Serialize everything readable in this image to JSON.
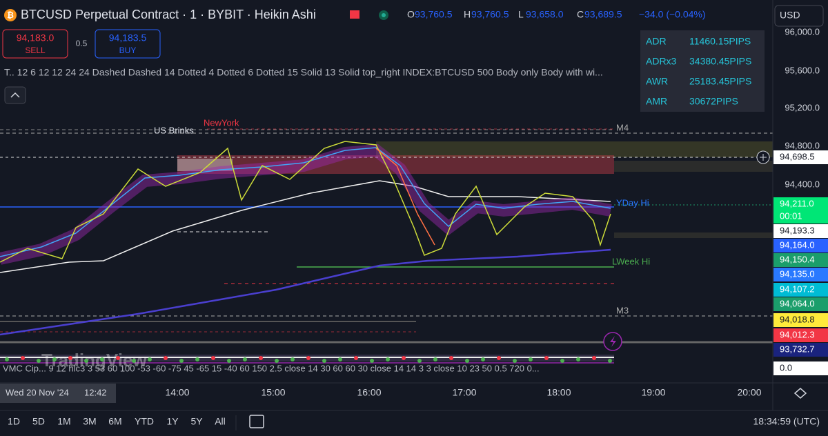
{
  "header": {
    "symbol": "BTCUSD Perpetual Contract · 1 · BYBIT · Heikin Ashi",
    "ohlc": [
      {
        "label": "O",
        "value": "93,760.5"
      },
      {
        "label": "H",
        "value": "93,760.5"
      },
      {
        "label": "L",
        "value": "93,658.0"
      },
      {
        "label": "C",
        "value": "93,689.5"
      }
    ],
    "change": "−34.0 (−0.04%)",
    "currency": "USD"
  },
  "trade": {
    "sell_price": "94,183.0",
    "sell": "SELL",
    "spread": "0.5",
    "buy_price": "94,183.5",
    "buy": "BUY"
  },
  "indicator_line": "T.. 12 6 12 12 24 24 Dashed Dashed 14 Dotted 4 Dotted 6 Dotted 15 Solid 13 Solid top_right INDEX:BTCUSD 500 Body only Body with wi...",
  "info_table": {
    "rows": [
      [
        "ADR",
        "11460.15PIPS"
      ],
      [
        "ADRx3",
        "34380.45PIPS"
      ],
      [
        "AWR",
        "25183.45PIPS"
      ],
      [
        "AMR",
        "30672PIPS"
      ]
    ]
  },
  "chart_labels": [
    "US Brinks",
    "NewYork",
    "M4",
    "YDay Hi",
    "LWeek Hi",
    "M3"
  ],
  "price_axis": {
    "ticks": [
      "96,000.0",
      "95,600.0",
      "95,200.0",
      "94,800.0",
      "94,400.0"
    ],
    "badges": [
      {
        "label": "94,698.5",
        "color": "#ffffff"
      },
      {
        "label": "94,211.0",
        "color": "#00e676"
      },
      {
        "label": "00:01",
        "color": "#00e676"
      },
      {
        "label": "94,193.3",
        "color": "#ffffff"
      },
      {
        "label": "94,164.0",
        "color": "#2962ff"
      },
      {
        "label": "94,150.4",
        "color": "#1b9e6b"
      },
      {
        "label": "94,135.0",
        "color": "#2979ff"
      },
      {
        "label": "94,107.2",
        "color": "#00bcd4"
      },
      {
        "label": "94,064.0",
        "color": "#1b9e6b"
      },
      {
        "label": "94,018.8",
        "color": "#ffeb3b"
      },
      {
        "label": "94,012.3",
        "color": "#f23645"
      },
      {
        "label": "93,732.7",
        "color": "#1a237e"
      },
      {
        "label": "0.0",
        "color": "#ffffff"
      }
    ]
  },
  "watermark": "TradingView",
  "oscillator_line": "VMC Cip... 9 12 hlc3 3 53 60 100 -53 -60 -75 45 -65 15 -40 60 150 2.5 close 14 30 60 60 30 close 14 14 3 3 close 10 23 50 0.5 720 0...",
  "time_axis": {
    "cursor_date": "Wed 20 Nov '24",
    "cursor_time": "12:42",
    "ticks": [
      "14:00",
      "15:00",
      "16:00",
      "17:00",
      "18:00",
      "19:00",
      "20:00"
    ]
  },
  "bottom_bar": {
    "ranges": [
      "1D",
      "5D",
      "1M",
      "3M",
      "6M",
      "YTD",
      "1Y",
      "5Y",
      "All"
    ],
    "clock": "18:34:59 (UTC)"
  }
}
